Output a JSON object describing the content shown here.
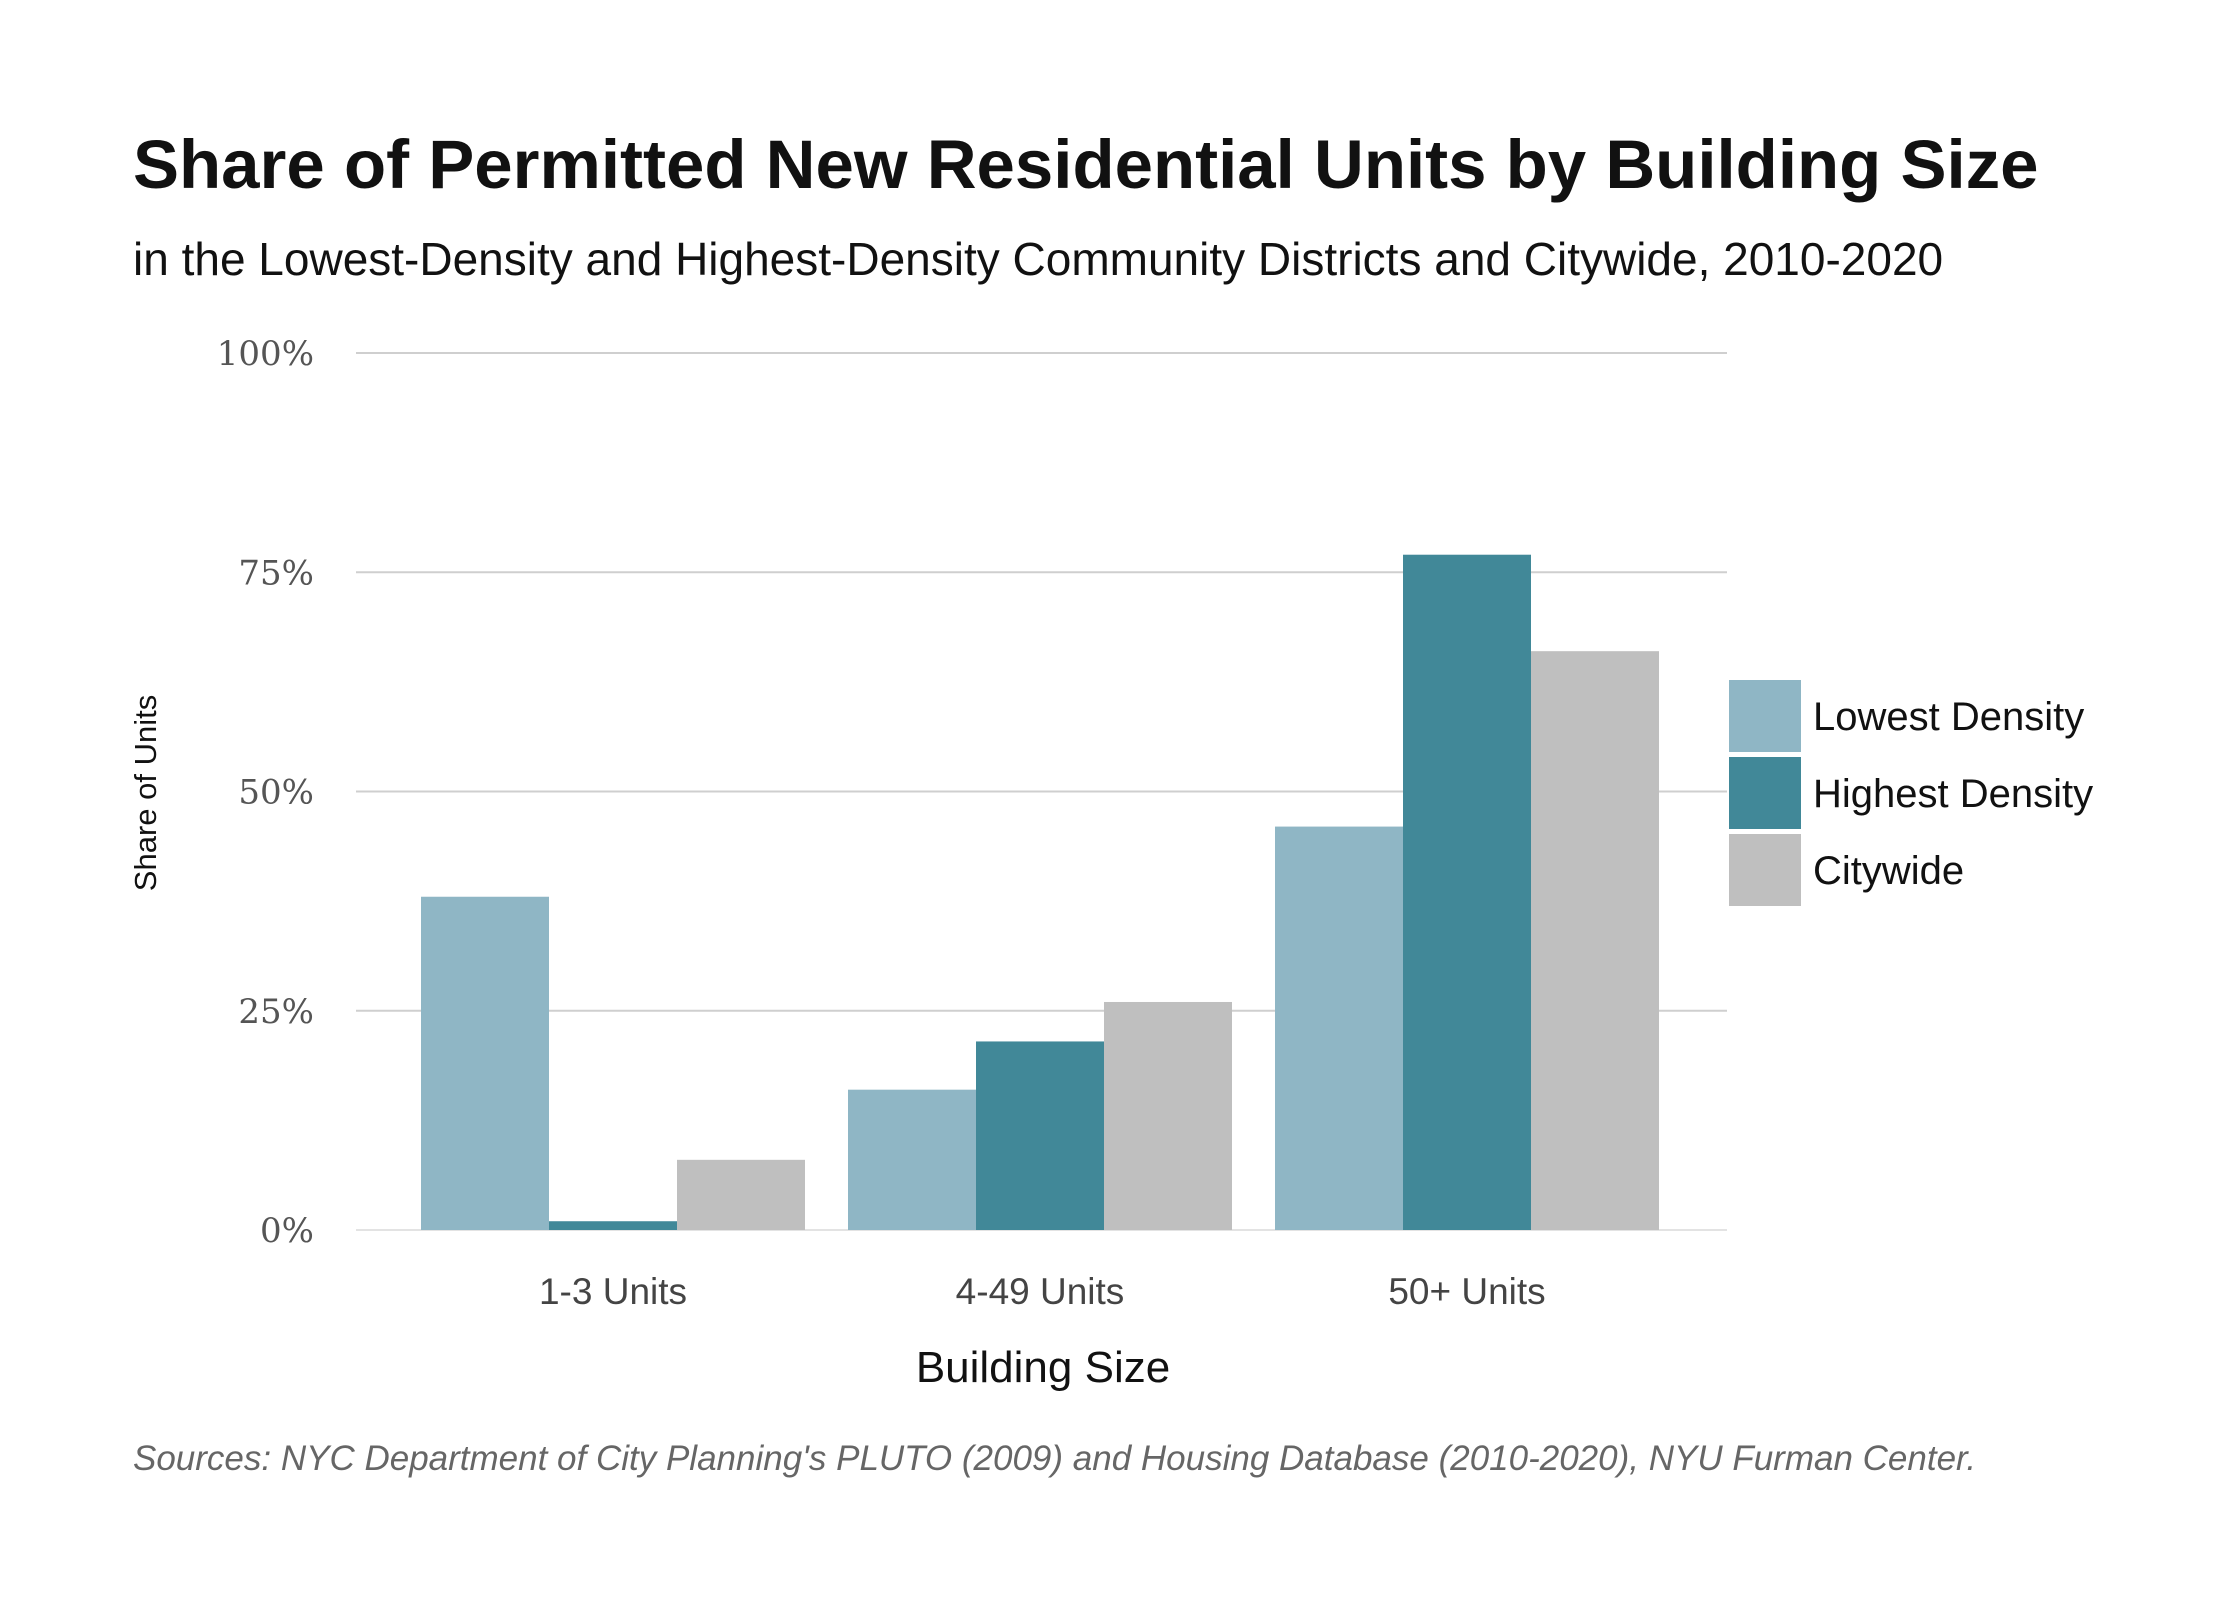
{
  "chart_data": {
    "type": "bar",
    "title": "Share of Permitted New Residential Units by Building Size",
    "subtitle": "in the Lowest-Density and Highest-Density Community Districts and Citywide, 2010-2020",
    "xlabel": "Building Size",
    "ylabel": "Share of Units",
    "ylim": [
      0,
      100
    ],
    "yticks": [
      {
        "value": 0,
        "label": "0%"
      },
      {
        "value": 25,
        "label": "25%"
      },
      {
        "value": 50,
        "label": "50%"
      },
      {
        "value": 75,
        "label": "75%"
      },
      {
        "value": 100,
        "label": "100%"
      }
    ],
    "categories": [
      "1-3 Units",
      "4-49 Units",
      "50+ Units"
    ],
    "series": [
      {
        "name": "Lowest Density",
        "color": "#8fb6c5",
        "values": [
          38,
          16,
          46
        ]
      },
      {
        "name": "Highest Density",
        "color": "#418898",
        "values": [
          1,
          21.5,
          77
        ]
      },
      {
        "name": "Citywide",
        "color": "#bfbfbf",
        "values": [
          8,
          26,
          66
        ]
      }
    ],
    "grid": true,
    "legend_position": "right",
    "source": "Sources: NYC Department of City Planning's PLUTO (2009) and Housing Database (2010-2020), NYU Furman Center."
  }
}
